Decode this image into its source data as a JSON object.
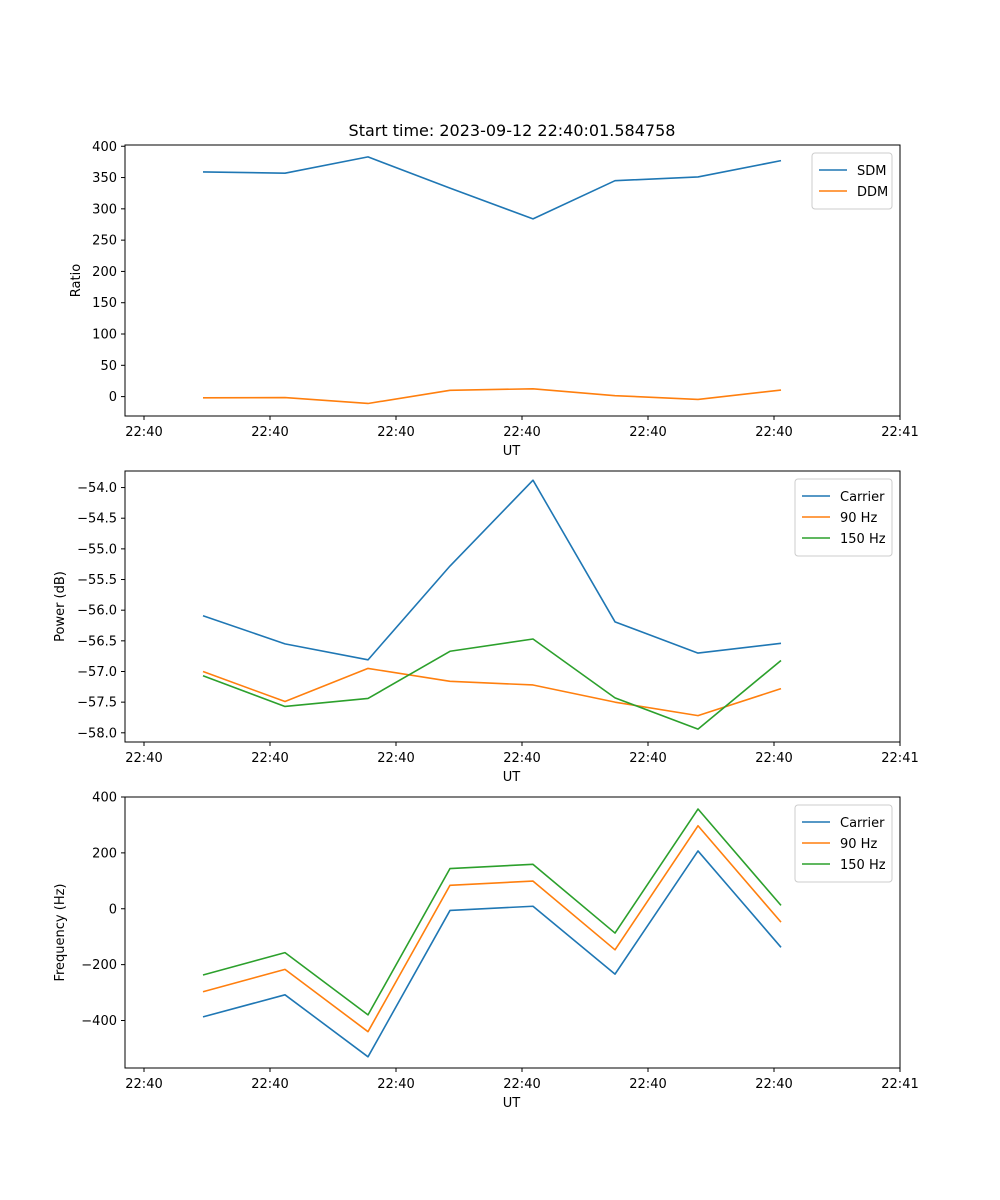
{
  "chart_data": [
    {
      "type": "line",
      "title": "Start time: 2023-09-12 22:40:01.584758",
      "xlabel": "UT",
      "ylabel": "Ratio",
      "x_tick_labels": [
        "22:40",
        "22:40",
        "22:40",
        "22:40",
        "22:40",
        "22:40",
        "22:40",
        "22:41"
      ],
      "ylim": [
        -31,
        402
      ],
      "y_ticks": [
        0,
        50,
        100,
        150,
        200,
        250,
        300,
        350,
        400
      ],
      "grid": false,
      "legend_position": "top-right",
      "series": [
        {
          "name": "SDM",
          "color": "#1f77b4",
          "values": [
            359,
            357,
            383,
            333,
            284,
            345,
            351,
            377
          ]
        },
        {
          "name": "DDM",
          "color": "#ff7f0e",
          "values": [
            -2,
            -1.5,
            -11,
            10,
            12.5,
            1.5,
            -4.5,
            10.5
          ]
        }
      ]
    },
    {
      "type": "line",
      "title": "",
      "xlabel": "UT",
      "ylabel": "Power (dB)",
      "x_tick_labels": [
        "22:40",
        "22:40",
        "22:40",
        "22:40",
        "22:40",
        "22:40",
        "22:40",
        "22:41"
      ],
      "ylim": [
        -58.15,
        -53.73
      ],
      "y_ticks": [
        -58.0,
        -57.5,
        -57.0,
        -56.5,
        -56.0,
        -55.5,
        -55.0,
        -54.5,
        -54.0
      ],
      "y_tick_labels": [
        "−58.0",
        "−57.5",
        "−57.0",
        "−56.5",
        "−56.0",
        "−55.5",
        "−55.0",
        "−54.5",
        "−54.0"
      ],
      "grid": false,
      "legend_position": "top-right",
      "series": [
        {
          "name": "Carrier",
          "color": "#1f77b4",
          "values": [
            -56.09,
            -56.55,
            -56.81,
            -55.28,
            -53.88,
            -56.19,
            -56.7,
            -56.54
          ]
        },
        {
          "name": "90 Hz",
          "color": "#ff7f0e",
          "values": [
            -57.0,
            -57.49,
            -56.95,
            -57.16,
            -57.22,
            -57.5,
            -57.72,
            -57.28
          ]
        },
        {
          "name": "150 Hz",
          "color": "#2ca02c",
          "values": [
            -57.07,
            -57.57,
            -57.44,
            -56.67,
            -56.47,
            -57.43,
            -57.94,
            -56.82
          ]
        }
      ]
    },
    {
      "type": "line",
      "title": "",
      "xlabel": "UT",
      "ylabel": "Frequency (Hz)",
      "x_tick_labels": [
        "22:40",
        "22:40",
        "22:40",
        "22:40",
        "22:40",
        "22:40",
        "22:40",
        "22:41"
      ],
      "ylim": [
        -570,
        400
      ],
      "y_ticks": [
        -400,
        -200,
        0,
        200,
        400
      ],
      "y_tick_labels": [
        "−400",
        "−200",
        "0",
        "200",
        "400"
      ],
      "grid": false,
      "legend_position": "top-right",
      "series": [
        {
          "name": "Carrier",
          "color": "#1f77b4",
          "values": [
            -387,
            -308,
            -530,
            -6,
            9,
            -234,
            207,
            -138
          ]
        },
        {
          "name": "90 Hz",
          "color": "#ff7f0e",
          "values": [
            -297,
            -217,
            -440,
            84,
            99,
            -147,
            297,
            -48
          ]
        },
        {
          "name": "150 Hz",
          "color": "#2ca02c",
          "values": [
            -237,
            -157,
            -380,
            144,
            159,
            -87,
            357,
            12
          ]
        }
      ]
    }
  ]
}
